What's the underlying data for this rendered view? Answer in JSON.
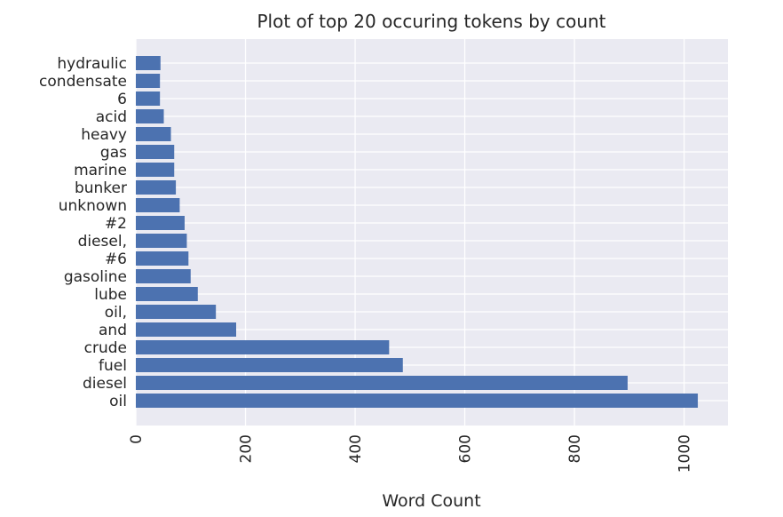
{
  "chart_data": {
    "type": "bar",
    "orientation": "horizontal",
    "title": "Plot of top 20 occuring tokens by count",
    "xlabel": "Word Count",
    "ylabel": "",
    "categories": [
      "oil",
      "diesel",
      "fuel",
      "crude",
      "and",
      "oil,",
      "lube",
      "gasoline",
      "#6",
      "diesel,",
      "#2",
      "unknown",
      "bunker",
      "marine",
      "gas",
      "heavy",
      "acid",
      "6",
      "condensate",
      "hydraulic"
    ],
    "values": [
      1025,
      897,
      487,
      462,
      183,
      146,
      113,
      100,
      96,
      93,
      89,
      80,
      73,
      70,
      70,
      64,
      51,
      44,
      44,
      45
    ],
    "xlim": [
      0,
      1080
    ],
    "xticks": [
      0,
      200,
      400,
      600,
      800,
      1000
    ],
    "tick_rotation": 90,
    "grid": true,
    "colors": {
      "bar": "#4c72b0",
      "background": "#eaeaf2",
      "grid": "#ffffff",
      "text": "#262626"
    }
  }
}
